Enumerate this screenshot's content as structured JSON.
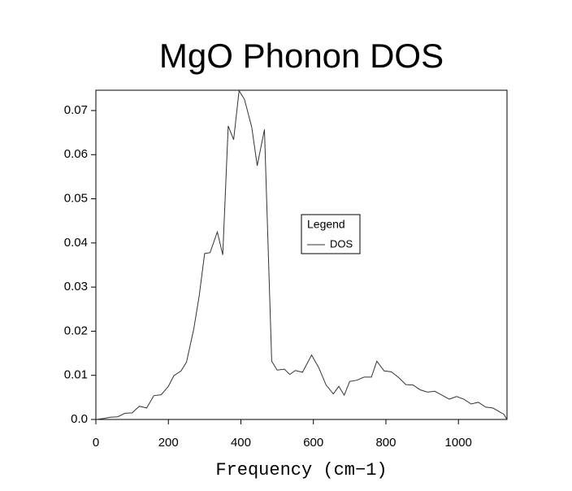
{
  "chart_data": {
    "type": "line",
    "title": "MgO Phonon DOS",
    "x_label": "Frequency (cm−1)",
    "x": [
      0,
      20,
      40,
      60,
      80,
      100,
      120,
      140,
      160,
      180,
      200,
      215,
      235,
      250,
      270,
      285,
      300,
      315,
      335,
      350,
      365,
      380,
      395,
      410,
      430,
      445,
      465,
      485,
      500,
      520,
      535,
      550,
      570,
      595,
      615,
      635,
      655,
      670,
      685,
      700,
      720,
      740,
      760,
      775,
      795,
      815,
      835,
      855,
      875,
      895,
      915,
      935,
      955,
      975,
      995,
      1015,
      1035,
      1055,
      1075,
      1095,
      1110,
      1125,
      1134
    ],
    "series": [
      {
        "name": "DOS",
        "color": "#333333",
        "values": [
          0,
          0.0002,
          0.0005,
          0.0006,
          0.0014,
          0.0015,
          0.003,
          0.0026,
          0.0054,
          0.0056,
          0.0075,
          0.0099,
          0.011,
          0.013,
          0.0205,
          0.028,
          0.0376,
          0.0378,
          0.0425,
          0.0373,
          0.0665,
          0.0634,
          0.0745,
          0.0725,
          0.0662,
          0.0575,
          0.0657,
          0.0132,
          0.0112,
          0.0114,
          0.0102,
          0.0111,
          0.0107,
          0.0146,
          0.0117,
          0.0078,
          0.0058,
          0.0075,
          0.0055,
          0.0086,
          0.0089,
          0.0096,
          0.0096,
          0.0132,
          0.011,
          0.0108,
          0.0095,
          0.0079,
          0.0078,
          0.0067,
          0.0062,
          0.0064,
          0.0055,
          0.0046,
          0.0052,
          0.0046,
          0.0035,
          0.0039,
          0.0028,
          0.0026,
          0.0019,
          0.0012,
          0
        ]
      }
    ],
    "xlim": [
      0,
      1134
    ],
    "xticks": [
      0,
      200,
      400,
      600,
      800,
      1000
    ],
    "ylim": [
      0,
      0.0746
    ],
    "yticks": [
      {
        "value": 0,
        "label": "0.0"
      },
      0.01,
      0.02,
      0.03,
      0.04,
      0.05,
      0.06,
      0.07
    ],
    "legend_title": "Legend",
    "grid": false
  }
}
